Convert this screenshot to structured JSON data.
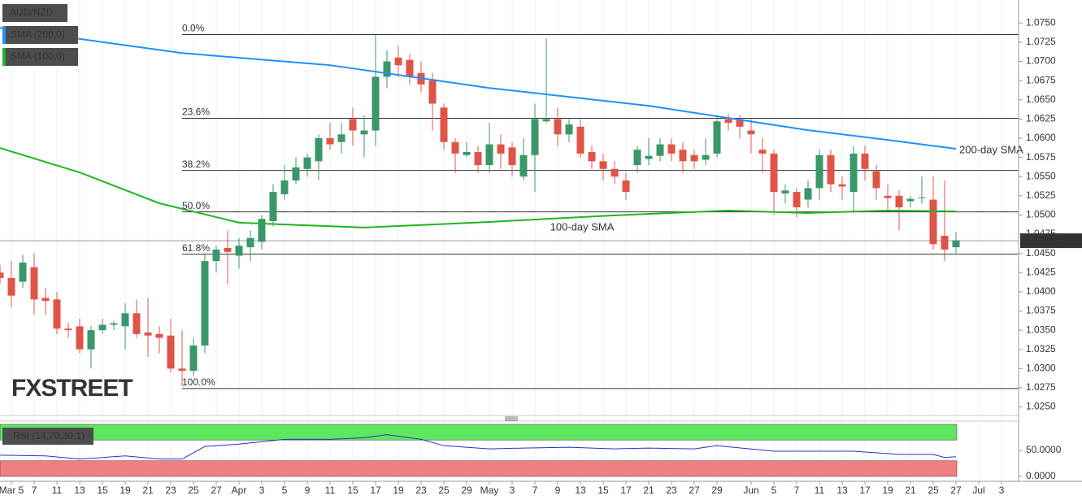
{
  "chart_data": [
    {
      "type": "candlestick",
      "title": "AUD/NZD",
      "x": [
        -2,
        -1,
        0,
        1,
        2,
        3,
        4,
        5,
        6,
        7,
        8,
        9,
        10,
        11,
        12,
        13,
        14,
        15,
        16,
        17,
        18,
        19,
        20,
        21,
        22,
        23,
        24,
        25,
        26,
        27,
        28,
        29,
        30,
        31,
        32,
        33,
        34,
        35,
        36,
        37,
        38,
        39,
        40,
        41,
        42,
        43,
        44,
        45,
        46,
        47,
        48,
        49,
        50,
        51,
        52,
        53,
        54,
        55,
        56,
        57,
        58,
        59,
        60,
        61,
        62,
        63,
        64,
        65,
        66,
        67,
        68,
        69,
        70,
        71,
        72,
        73,
        74,
        75,
        76,
        77,
        78,
        79,
        80,
        81,
        82
      ],
      "open": [
        1.0425,
        1.0418,
        1.0413,
        1.0432,
        1.0392,
        1.039,
        1.0352,
        1.0355,
        1.0325,
        1.035,
        1.0357,
        1.0355,
        1.0372,
        1.0347,
        1.0345,
        1.0343,
        1.03,
        1.0297,
        1.033,
        1.044,
        1.0457,
        1.0447,
        1.0458,
        1.0465,
        1.0492,
        1.0527,
        1.0545,
        1.056,
        1.057,
        1.06,
        1.0595,
        1.0625,
        1.0605,
        1.061,
        1.068,
        1.0705,
        1.0702,
        1.0685,
        1.0675,
        1.064,
        1.0595,
        1.0578,
        1.0582,
        1.0565,
        1.0592,
        1.0588,
        1.055,
        1.0578,
        1.0622,
        1.0625,
        1.0605,
        1.0615,
        1.0582,
        1.057,
        1.056,
        1.0545,
        1.0565,
        1.0573,
        1.0577,
        1.0592,
        1.0585,
        1.0578,
        1.0572,
        1.058,
        1.0625,
        1.0625,
        1.061,
        1.0585,
        1.058,
        1.0528,
        1.053,
        1.052,
        1.0535,
        1.0578,
        1.054,
        1.053,
        1.058,
        1.0557,
        1.0525,
        1.0525,
        1.0518,
        1.0522,
        1.052,
        1.0473,
        1.0458
      ],
      "high": [
        1.0435,
        1.044,
        1.0448,
        1.045,
        1.0405,
        1.04,
        1.036,
        1.0365,
        1.0355,
        1.0365,
        1.0362,
        1.0385,
        1.039,
        1.0392,
        1.0355,
        1.0365,
        1.035,
        1.034,
        1.045,
        1.046,
        1.048,
        1.047,
        1.048,
        1.05,
        1.054,
        1.0565,
        1.0575,
        1.058,
        1.0605,
        1.062,
        1.062,
        1.064,
        1.063,
        1.0735,
        1.0715,
        1.072,
        1.071,
        1.07,
        1.0685,
        1.0645,
        1.06,
        1.0595,
        1.059,
        1.062,
        1.0605,
        1.0595,
        1.06,
        1.0645,
        1.073,
        1.064,
        1.0625,
        1.0625,
        1.059,
        1.058,
        1.057,
        1.0555,
        1.059,
        1.06,
        1.06,
        1.06,
        1.0595,
        1.0585,
        1.06,
        1.063,
        1.0632,
        1.063,
        1.0625,
        1.06,
        1.0585,
        1.054,
        1.0535,
        1.0545,
        1.0585,
        1.0585,
        1.055,
        1.059,
        1.059,
        1.0565,
        1.054,
        1.0532,
        1.0525,
        1.055,
        1.055,
        1.0545,
        1.0478
      ],
      "low": [
        1.041,
        1.038,
        1.0405,
        1.037,
        1.037,
        1.0345,
        1.034,
        1.032,
        1.03,
        1.0345,
        1.035,
        1.0325,
        1.034,
        1.0315,
        1.032,
        1.0295,
        1.0277,
        1.029,
        1.032,
        1.0425,
        1.041,
        1.043,
        1.044,
        1.0455,
        1.0485,
        1.052,
        1.054,
        1.055,
        1.0545,
        1.0585,
        1.058,
        1.059,
        1.0575,
        1.059,
        1.0665,
        1.068,
        1.067,
        1.066,
        1.061,
        1.0585,
        1.0555,
        1.0575,
        1.0555,
        1.0555,
        1.056,
        1.055,
        1.0545,
        1.053,
        1.062,
        1.059,
        1.0595,
        1.0575,
        1.056,
        1.0545,
        1.054,
        1.052,
        1.0555,
        1.0565,
        1.057,
        1.057,
        1.0555,
        1.056,
        1.0565,
        1.0575,
        1.061,
        1.06,
        1.058,
        1.0555,
        1.05,
        1.0515,
        1.0497,
        1.051,
        1.052,
        1.053,
        1.052,
        1.0505,
        1.0545,
        1.052,
        1.0505,
        1.048,
        1.051,
        1.0515,
        1.0455,
        1.044,
        1.045
      ],
      "close": [
        1.0418,
        1.0395,
        1.0438,
        1.039,
        1.0388,
        1.0352,
        1.035,
        1.0325,
        1.035,
        1.0357,
        1.0359,
        1.0372,
        1.0345,
        1.0343,
        1.034,
        1.03,
        1.0297,
        1.033,
        1.044,
        1.0455,
        1.0452,
        1.046,
        1.047,
        1.0495,
        1.053,
        1.0545,
        1.0562,
        1.0575,
        1.06,
        1.0592,
        1.0605,
        1.061,
        1.061,
        1.068,
        1.07,
        1.0695,
        1.068,
        1.067,
        1.0645,
        1.0595,
        1.058,
        1.0582,
        1.0565,
        1.0592,
        1.058,
        1.0565,
        1.0578,
        1.0625,
        1.0625,
        1.0605,
        1.0618,
        1.058,
        1.057,
        1.056,
        1.055,
        1.053,
        1.0585,
        1.0577,
        1.0592,
        1.058,
        1.057,
        1.057,
        1.0578,
        1.0622,
        1.062,
        1.0615,
        1.0605,
        1.058,
        1.053,
        1.0532,
        1.051,
        1.0535,
        1.0578,
        1.054,
        1.0537,
        1.058,
        1.056,
        1.0535,
        1.0522,
        1.051,
        1.0521,
        1.0523,
        1.0462,
        1.0455,
        1.0467
      ],
      "up_color": "#39976a",
      "down_color": "#e05448",
      "overlays": [
        {
          "name": "SMA (200,0)",
          "label": "200-day SMA",
          "color": "#1e90ff",
          "x": [
            -2,
            14,
            27,
            41,
            55,
            62,
            69,
            76,
            82
          ],
          "values": [
            1.07437,
            1.07109,
            1.06951,
            1.06654,
            1.06422,
            1.06263,
            1.06105,
            1.05978,
            1.05862
          ]
        },
        {
          "name": "SMA (100,0)",
          "label": "100-day SMA",
          "color": "#22b422",
          "x": [
            -2,
            5,
            12,
            19,
            30,
            41,
            52,
            62,
            69,
            76,
            82
          ],
          "values": [
            1.05872,
            1.05555,
            1.05153,
            1.049,
            1.04836,
            1.0491,
            1.04995,
            1.05058,
            1.05026,
            1.05058,
            1.05047
          ]
        }
      ],
      "fib_levels": [
        {
          "label": "0.0%",
          "value": 1.0735
        },
        {
          "label": "23.6%",
          "value": 1.0626
        },
        {
          "label": "38.2%",
          "value": 1.0558
        },
        {
          "label": "50.0%",
          "value": 1.0504
        },
        {
          "label": "61.8%",
          "value": 1.0449
        },
        {
          "label": "100.0%",
          "value": 1.0274
        }
      ],
      "last_price": 1.04665,
      "watermark": "FXSTREET",
      "xlim": [
        -2,
        87.5
      ],
      "ylim": [
        1.024,
        1.078
      ],
      "yticks": [
        {
          "value": 1.025,
          "label": "1.0250"
        },
        1.0275,
        {
          "value": 1.03,
          "label": "1.0300"
        },
        1.0325,
        {
          "value": 1.035,
          "label": "1.0350"
        },
        1.0375,
        {
          "value": 1.04,
          "label": "1.0400"
        },
        1.0425,
        {
          "value": 1.045,
          "label": "1.0450"
        },
        1.0475,
        {
          "value": 1.05,
          "label": "1.0500"
        },
        1.0525,
        {
          "value": 1.055,
          "label": "1.0550"
        },
        1.0575,
        {
          "value": 1.06,
          "label": "1.0600"
        },
        1.0625,
        {
          "value": 1.065,
          "label": "1.0650"
        },
        1.0675,
        {
          "value": 1.07,
          "label": "1.0700"
        },
        1.0725,
        {
          "value": 1.075,
          "label": "1.0750"
        }
      ],
      "xticks": [
        {
          "value": -1,
          "label": "Mar 5"
        },
        {
          "value": 1,
          "label": "7"
        },
        {
          "value": 3,
          "label": "11"
        },
        {
          "value": 5,
          "label": "13"
        },
        {
          "value": 7,
          "label": "15"
        },
        {
          "value": 9,
          "label": "19"
        },
        {
          "value": 11,
          "label": "21"
        },
        {
          "value": 13,
          "label": "23"
        },
        {
          "value": 15,
          "label": "25"
        },
        {
          "value": 17,
          "label": "27"
        },
        {
          "value": 19,
          "label": "Apr"
        },
        {
          "value": 21,
          "label": "3"
        },
        {
          "value": 23,
          "label": "5"
        },
        {
          "value": 25,
          "label": "9"
        },
        {
          "value": 27,
          "label": "11"
        },
        {
          "value": 29,
          "label": "15"
        },
        {
          "value": 31,
          "label": "17"
        },
        {
          "value": 33,
          "label": "19"
        },
        {
          "value": 35,
          "label": "23"
        },
        {
          "value": 37,
          "label": "25"
        },
        {
          "value": 39,
          "label": "29"
        },
        {
          "value": 41,
          "label": "May"
        },
        {
          "value": 43,
          "label": "3"
        },
        {
          "value": 45,
          "label": "7"
        },
        {
          "value": 47,
          "label": "9"
        },
        {
          "value": 49,
          "label": "13"
        },
        {
          "value": 51,
          "label": "15"
        },
        {
          "value": 53,
          "label": "17"
        },
        {
          "value": 55,
          "label": "21"
        },
        {
          "value": 57,
          "label": "23"
        },
        {
          "value": 59,
          "label": "27"
        },
        {
          "value": 61,
          "label": "29"
        },
        {
          "value": 64,
          "label": "Jun"
        },
        {
          "value": 66,
          "label": "5"
        },
        {
          "value": 68,
          "label": "7"
        },
        {
          "value": 70,
          "label": "11"
        },
        {
          "value": 72,
          "label": "13"
        },
        {
          "value": 74,
          "label": "17"
        },
        {
          "value": 76,
          "label": "19"
        },
        {
          "value": 78,
          "label": "21"
        },
        {
          "value": 80,
          "label": "25"
        },
        {
          "value": 82,
          "label": "27"
        },
        {
          "value": 84,
          "label": "Jul"
        },
        {
          "value": 86,
          "label": "3"
        }
      ],
      "grid": true
    },
    {
      "type": "line",
      "title": "RSI (14,70,30,1)",
      "x": [
        -2,
        2,
        5,
        9,
        12,
        14,
        16,
        19,
        23,
        27,
        30,
        32,
        35,
        37,
        41,
        44,
        48,
        52,
        55,
        59,
        61,
        66,
        69,
        73,
        77,
        80,
        81,
        82
      ],
      "values": [
        40.9,
        39.4,
        33.3,
        39.4,
        33.3,
        33.3,
        57.6,
        62.1,
        71.2,
        71.2,
        74.2,
        80.3,
        71.2,
        59.1,
        53.0,
        54.5,
        56.1,
        53.0,
        54.5,
        53.0,
        59.1,
        48.5,
        48.5,
        48.5,
        42.4,
        42.4,
        36.4,
        37.9
      ],
      "color": "#2233cc",
      "bands": [
        {
          "from": 70,
          "to": 100,
          "color": "#5ee65e"
        },
        {
          "from": 0,
          "to": 30,
          "color": "#f08080"
        }
      ],
      "xlim": [
        -2,
        87.5
      ],
      "ylim": [
        -9.4,
        106.25
      ],
      "yticks": [
        {
          "value": 0,
          "label": "0.0000"
        },
        {
          "value": 50,
          "label": "50.0000"
        }
      ]
    }
  ]
}
